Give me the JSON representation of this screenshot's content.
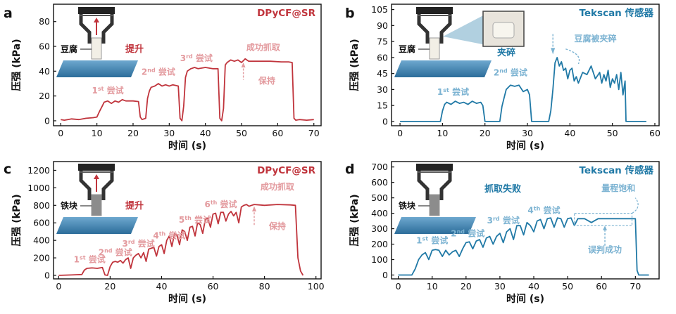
{
  "chart_data": [
    {
      "panel_letter": "a",
      "type": "line",
      "title": "DPyCF@SR",
      "xlabel": "时间 (s)",
      "ylabel": "压强 (kPa)",
      "xlim": [
        -2,
        72
      ],
      "ylim": [
        -4,
        94
      ],
      "xticks": [
        0,
        10,
        20,
        30,
        40,
        50,
        60,
        70
      ],
      "yticks": [
        0,
        20,
        40,
        60,
        80
      ],
      "color": "#c0343c",
      "inset": {
        "object_label": "豆腐",
        "action_label": "提升"
      },
      "annotations": [
        {
          "base": "1",
          "sup": "st",
          "text": " 尝试",
          "x": 13,
          "y": 22
        },
        {
          "base": "2",
          "sup": "nd",
          "text": " 尝试",
          "x": 27,
          "y": 37
        },
        {
          "base": "3",
          "sup": "rd",
          "text": " 尝试",
          "x": 37.5,
          "y": 48
        },
        {
          "text": "成功抓取",
          "x": 56,
          "y": 57
        },
        {
          "text": "保持",
          "x": 57,
          "y": 30
        }
      ],
      "series": [
        {
          "x": [
            0,
            1,
            3,
            5,
            7,
            9,
            10,
            10.8,
            11.5,
            12,
            13,
            14,
            15,
            16,
            17,
            18,
            19,
            20,
            21.5,
            22,
            22.5,
            23.5,
            24,
            24.5,
            25,
            26,
            27,
            28,
            29,
            30,
            31,
            32.5,
            33,
            33.5,
            34,
            34.5,
            35,
            36,
            37,
            38,
            40,
            42,
            43.5,
            44,
            44.5,
            45,
            45.5,
            46,
            47,
            48,
            49,
            50,
            51,
            52,
            55,
            58,
            61,
            63,
            64,
            64.5,
            65,
            66,
            68,
            70
          ],
          "y": [
            1,
            0.5,
            1.5,
            1,
            2,
            2.5,
            3,
            8,
            12,
            15,
            16,
            14,
            16,
            15,
            17,
            16,
            16,
            16,
            15.5,
            3,
            1,
            2,
            18,
            24,
            27,
            28,
            30,
            28,
            29,
            28,
            29,
            28,
            2,
            0,
            12,
            35,
            40,
            42,
            43,
            42,
            43,
            42,
            42,
            2,
            0,
            10,
            45,
            47,
            49,
            48,
            49,
            47,
            50,
            48,
            48,
            48,
            47.5,
            47.5,
            47,
            2,
            0.5,
            1,
            0.5,
            1
          ]
        }
      ]
    },
    {
      "panel_letter": "b",
      "type": "line",
      "title": "Tekscan 传感器",
      "xlabel": "时间 (s)",
      "ylabel": "压强 (kPa)",
      "xlim": [
        -2,
        61
      ],
      "ylim": [
        -4,
        110
      ],
      "xticks": [
        0,
        10,
        20,
        30,
        40,
        50,
        60
      ],
      "yticks": [
        0,
        15,
        30,
        45,
        60,
        75,
        90,
        105
      ],
      "color": "#2079a6",
      "inset": {
        "object_label": "豆腐",
        "action_label": "夹碎"
      },
      "annotations": [
        {
          "base": "1",
          "sup": "st",
          "text": " 尝试",
          "x": 12.5,
          "y": 25
        },
        {
          "base": "2",
          "sup": "nd",
          "text": " 尝试",
          "x": 26,
          "y": 43
        },
        {
          "text": "豆腐被夹碎",
          "x": 46,
          "y": 75
        }
      ],
      "series": [
        {
          "x": [
            0,
            5,
            9.5,
            10,
            10.5,
            11,
            12,
            13,
            14,
            15,
            16,
            17,
            18,
            19,
            19.5,
            20,
            23.5,
            24,
            24.5,
            25,
            26,
            27,
            28,
            29,
            30,
            30.5,
            31,
            35,
            35.5,
            36,
            36.5,
            37,
            37.5,
            38,
            38.5,
            39,
            39.5,
            40,
            40.5,
            41,
            41.5,
            42,
            43,
            44,
            45,
            46,
            47,
            47.5,
            48,
            48.5,
            49,
            49.5,
            50,
            50.5,
            51,
            51.5,
            52,
            52.5,
            53,
            53.2,
            55,
            58
          ],
          "y": [
            0,
            0,
            0,
            10,
            16,
            18,
            16,
            19,
            17,
            18,
            16,
            19,
            17,
            18,
            15,
            0,
            0,
            14,
            22,
            30,
            34,
            33,
            34,
            28,
            30,
            25,
            0,
            0,
            10,
            30,
            55,
            60,
            52,
            56,
            48,
            50,
            40,
            48,
            50,
            38,
            42,
            36,
            46,
            44,
            52,
            40,
            46,
            36,
            44,
            38,
            48,
            32,
            40,
            36,
            44,
            30,
            46,
            25,
            38,
            0,
            0,
            0
          ]
        }
      ]
    },
    {
      "panel_letter": "c",
      "type": "line",
      "title": "DPyCF@SR",
      "xlabel": "时间 (s)",
      "ylabel": "压强 (kPa)",
      "xlim": [
        -2,
        102
      ],
      "ylim": [
        -40,
        1300
      ],
      "xticks": [
        0,
        20,
        40,
        60,
        80,
        100
      ],
      "yticks": [
        0,
        200,
        400,
        600,
        800,
        1000,
        1200
      ],
      "color": "#c0343c",
      "inset": {
        "object_label": "铁块",
        "action_label": "提升"
      },
      "annotations": [
        {
          "base": "1",
          "sup": "st",
          "text": " 尝试",
          "x": 12,
          "y": 150
        },
        {
          "base": "2",
          "sup": "nd",
          "text": " 尝试",
          "x": 22,
          "y": 230
        },
        {
          "base": "3",
          "sup": "rd",
          "text": " 尝试",
          "x": 31,
          "y": 330
        },
        {
          "base": "4",
          "sup": "th",
          "text": " 尝试",
          "x": 43,
          "y": 420
        },
        {
          "base": "5",
          "sup": "th",
          "text": " 尝试",
          "x": 53,
          "y": 600
        },
        {
          "base": "6",
          "sup": "th",
          "text": " 尝试",
          "x": 63,
          "y": 780
        },
        {
          "text": "成功抓取",
          "x": 85,
          "y": 980
        },
        {
          "text": "保持",
          "x": 85,
          "y": 530
        }
      ],
      "series": [
        {
          "x": [
            0,
            5,
            9,
            10,
            11,
            13,
            15,
            17,
            18,
            19,
            20,
            21,
            22,
            23,
            24,
            25,
            26,
            27,
            28,
            29,
            30,
            31,
            32,
            33,
            34,
            35,
            36,
            37,
            38,
            39,
            40,
            41,
            42,
            43,
            44,
            45,
            46,
            47,
            48,
            49,
            50,
            51,
            52,
            53,
            54,
            55,
            56,
            57,
            58,
            59,
            60,
            61,
            62,
            63,
            64,
            65,
            66,
            67,
            68,
            69,
            70,
            71,
            72,
            73,
            74,
            75,
            76,
            80,
            85,
            90,
            92,
            93,
            94,
            95
          ],
          "y": [
            0,
            5,
            10,
            60,
            80,
            85,
            80,
            90,
            5,
            0,
            100,
            150,
            160,
            150,
            170,
            140,
            180,
            200,
            80,
            200,
            230,
            250,
            200,
            260,
            160,
            300,
            310,
            320,
            220,
            330,
            350,
            250,
            400,
            450,
            330,
            470,
            460,
            350,
            520,
            500,
            400,
            550,
            560,
            450,
            600,
            580,
            480,
            640,
            650,
            550,
            700,
            710,
            590,
            720,
            720,
            620,
            700,
            730,
            680,
            720,
            600,
            780,
            800,
            810,
            790,
            800,
            810,
            800,
            810,
            805,
            800,
            200,
            50,
            0
          ]
        }
      ]
    },
    {
      "panel_letter": "d",
      "type": "line",
      "title": "Tekscan 传感器",
      "xlabel": "时间 (s)",
      "ylabel": "压强 (kPa)",
      "xlim": [
        -2,
        77
      ],
      "ylim": [
        -25,
        735
      ],
      "xticks": [
        0,
        10,
        20,
        30,
        40,
        50,
        60,
        70
      ],
      "yticks": [
        0,
        100,
        200,
        300,
        400,
        500,
        600,
        700
      ],
      "color": "#2079a6",
      "inset": {
        "object_label": "铁块",
        "action_label": "抓取失败"
      },
      "annotations": [
        {
          "base": "1",
          "sup": "st",
          "text": " 尝试",
          "x": 10,
          "y": 205
        },
        {
          "base": "2",
          "sup": "nd",
          "text": " 尝试",
          "x": 20.5,
          "y": 250
        },
        {
          "base": "3",
          "sup": "rd",
          "text": " 尝试",
          "x": 31,
          "y": 335
        },
        {
          "base": "4",
          "sup": "th",
          "text": " 尝试",
          "x": 43,
          "y": 400
        },
        {
          "text": "量程饱和",
          "x": 65,
          "y": 545
        },
        {
          "text": "误判成功",
          "x": 61,
          "y": 145
        }
      ],
      "series": [
        {
          "x": [
            0,
            4,
            5,
            6,
            7,
            8,
            9,
            10,
            11,
            12,
            13,
            14,
            15,
            16,
            17,
            18,
            19,
            20,
            21,
            22,
            23,
            24,
            25,
            26,
            27,
            28,
            29,
            30,
            31,
            32,
            33,
            34,
            35,
            36,
            37,
            38,
            39,
            40,
            41,
            42,
            43,
            44,
            45,
            46,
            47,
            48,
            49,
            50,
            51,
            52,
            53,
            55,
            57,
            59,
            61,
            63,
            65,
            67,
            69,
            70,
            70.5,
            71,
            74
          ],
          "y": [
            0,
            0,
            40,
            100,
            130,
            145,
            100,
            160,
            165,
            160,
            120,
            160,
            130,
            150,
            160,
            120,
            170,
            210,
            215,
            170,
            220,
            230,
            180,
            240,
            250,
            200,
            250,
            270,
            210,
            280,
            300,
            230,
            320,
            320,
            260,
            340,
            320,
            280,
            350,
            360,
            300,
            365,
            370,
            310,
            370,
            365,
            310,
            365,
            370,
            320,
            365,
            365,
            340,
            365,
            365,
            365,
            365,
            365,
            365,
            365,
            30,
            0,
            0
          ]
        }
      ]
    }
  ]
}
